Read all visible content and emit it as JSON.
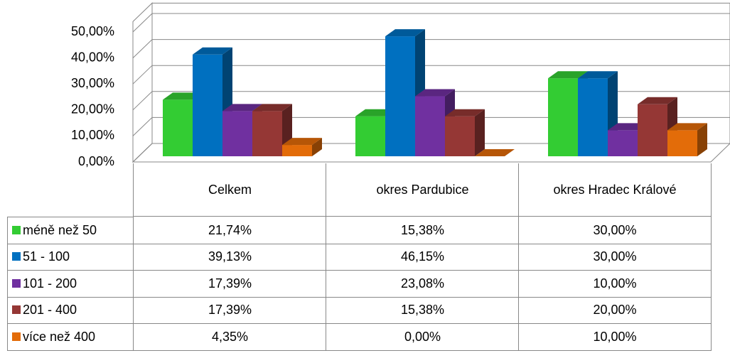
{
  "chart_data": {
    "type": "bar",
    "categories": [
      "Celkem",
      "okres Pardubice",
      "okres Hradec Králové"
    ],
    "series": [
      {
        "name": "méně než 50",
        "color": "#33cc33",
        "values": [
          21.74,
          15.38,
          30.0
        ],
        "value_labels": [
          "21,74%",
          "15,38%",
          "30,00%"
        ]
      },
      {
        "name": "51 - 100",
        "color": "#0070c0",
        "values": [
          39.13,
          46.15,
          30.0
        ],
        "value_labels": [
          "39,13%",
          "46,15%",
          "30,00%"
        ]
      },
      {
        "name": "101 - 200",
        "color": "#7030a0",
        "values": [
          17.39,
          23.08,
          10.0
        ],
        "value_labels": [
          "17,39%",
          "23,08%",
          "10,00%"
        ]
      },
      {
        "name": "201 - 400",
        "color": "#953735",
        "values": [
          17.39,
          15.38,
          20.0
        ],
        "value_labels": [
          "17,39%",
          "15,38%",
          "20,00%"
        ]
      },
      {
        "name": "více než 400",
        "color": "#e36c09",
        "values": [
          4.35,
          0.0,
          10.0
        ],
        "value_labels": [
          "4,35%",
          "0,00%",
          "10,00%"
        ]
      }
    ],
    "ylim": [
      0,
      50
    ],
    "yticks": [
      {
        "value": 0,
        "label": "0,00%"
      },
      {
        "value": 10,
        "label": "10,00%"
      },
      {
        "value": 20,
        "label": "20,00%"
      },
      {
        "value": 30,
        "label": "30,00%"
      },
      {
        "value": 40,
        "label": "40,00%"
      },
      {
        "value": 50,
        "label": "50,00%"
      }
    ],
    "grid": true,
    "data_table": true
  }
}
